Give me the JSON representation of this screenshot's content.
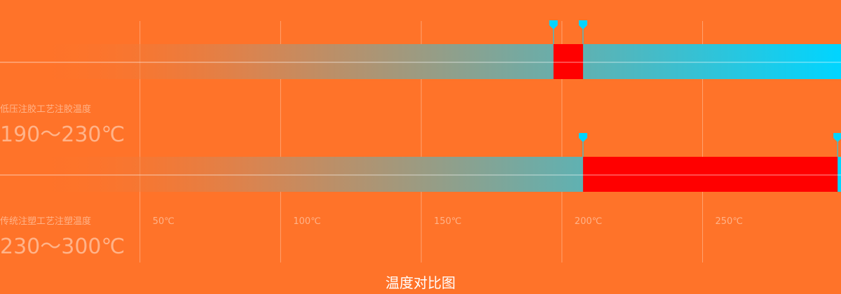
{
  "chart_data": {
    "type": "bar",
    "title": "温度对比图",
    "xlim": [
      0,
      300
    ],
    "x_ticks": [
      "50℃",
      "100℃",
      "150℃",
      "200℃",
      "250℃"
    ],
    "x_tick_values": [
      50,
      100,
      150,
      200,
      250
    ],
    "grid": true,
    "series": [
      {
        "name": "低压注胶工艺注胶温度",
        "range_label": "190～230℃",
        "highlight": [
          197,
          207.5
        ]
      },
      {
        "name": "传统注塑工艺注塑温度",
        "range_label": "230～300℃",
        "highlight": [
          207.5,
          298
        ]
      }
    ],
    "colors": {
      "background": "#ff7329",
      "highlight": "#ff0000",
      "gradient_end": "#00d5ff",
      "marker": "#00d5ff"
    }
  }
}
